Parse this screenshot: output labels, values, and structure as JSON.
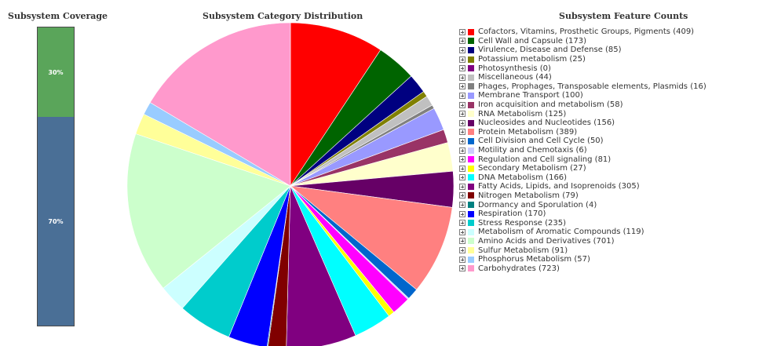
{
  "coverage": {
    "title": "Subsystem Coverage",
    "segments": [
      {
        "label": "30%",
        "value": 30,
        "color": "#5aa55a"
      },
      {
        "label": "70%",
        "value": 70,
        "color": "#4a6f96"
      }
    ]
  },
  "pie": {
    "title": "Subsystem Category Distribution"
  },
  "legend": {
    "title": "Subsystem Feature Counts"
  },
  "chart_data": {
    "type": "pie",
    "title": "Subsystem Category Distribution",
    "slices": [
      {
        "label": "Cofactors, Vitamins, Prosthetic Groups, Pigments (409)",
        "value": 409,
        "color": "#ff0000"
      },
      {
        "label": "Cell Wall and Capsule (173)",
        "value": 173,
        "color": "#006400"
      },
      {
        "label": "Virulence, Disease and Defense (85)",
        "value": 85,
        "color": "#000080"
      },
      {
        "label": "Potassium metabolism (25)",
        "value": 25,
        "color": "#808000"
      },
      {
        "label": "Photosynthesis (0)",
        "value": 0,
        "color": "#800080"
      },
      {
        "label": "Miscellaneous (44)",
        "value": 44,
        "color": "#c0c0c0"
      },
      {
        "label": "Phages, Prophages, Transposable elements, Plasmids (16)",
        "value": 16,
        "color": "#808080"
      },
      {
        "label": "Membrane Transport (100)",
        "value": 100,
        "color": "#9999ff"
      },
      {
        "label": "Iron acquisition and metabolism (58)",
        "value": 58,
        "color": "#993366"
      },
      {
        "label": "RNA Metabolism (125)",
        "value": 125,
        "color": "#ffffcc"
      },
      {
        "label": "Nucleosides and Nucleotides (156)",
        "value": 156,
        "color": "#660066"
      },
      {
        "label": "Protein Metabolism (389)",
        "value": 389,
        "color": "#ff8080"
      },
      {
        "label": "Cell Division and Cell Cycle (50)",
        "value": 50,
        "color": "#0066cc"
      },
      {
        "label": "Motility and Chemotaxis (6)",
        "value": 6,
        "color": "#ccccff"
      },
      {
        "label": "Regulation and Cell signaling (81)",
        "value": 81,
        "color": "#ff00ff"
      },
      {
        "label": "Secondary Metabolism (27)",
        "value": 27,
        "color": "#ffff00"
      },
      {
        "label": "DNA Metabolism (166)",
        "value": 166,
        "color": "#00ffff"
      },
      {
        "label": "Fatty Acids, Lipids, and Isoprenoids (305)",
        "value": 305,
        "color": "#800080"
      },
      {
        "label": "Nitrogen Metabolism (79)",
        "value": 79,
        "color": "#800000"
      },
      {
        "label": "Dormancy and Sporulation (4)",
        "value": 4,
        "color": "#008080"
      },
      {
        "label": "Respiration (170)",
        "value": 170,
        "color": "#0000ff"
      },
      {
        "label": "Stress Response (235)",
        "value": 235,
        "color": "#00cccc"
      },
      {
        "label": "Metabolism of Aromatic Compounds (119)",
        "value": 119,
        "color": "#ccffff"
      },
      {
        "label": "Amino Acids and Derivatives (701)",
        "value": 701,
        "color": "#ccffcc"
      },
      {
        "label": "Sulfur Metabolism (91)",
        "value": 91,
        "color": "#ffff99"
      },
      {
        "label": "Phosphorus Metabolism (57)",
        "value": 57,
        "color": "#99ccff"
      },
      {
        "label": "Carbohydrates (723)",
        "value": 723,
        "color": "#ff99cc"
      }
    ]
  }
}
